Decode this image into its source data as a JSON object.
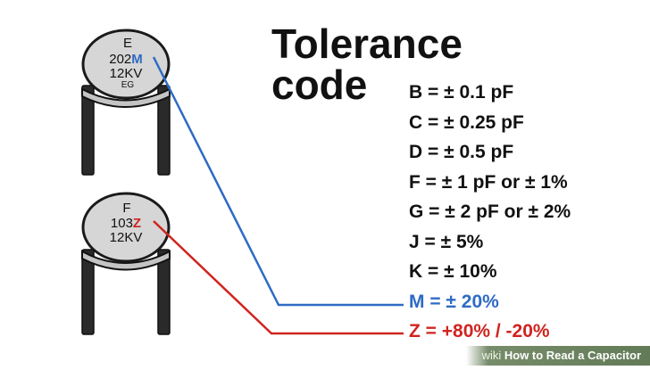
{
  "title": {
    "line1": "Tolerance",
    "line2": "code"
  },
  "capacitors": [
    {
      "line1": "E",
      "code": "202",
      "tol": "M",
      "voltage": "12KV",
      "maker": "EG",
      "tol_color": "#2e6bc4"
    },
    {
      "line1": "F",
      "code": "103",
      "tol": "Z",
      "voltage": "12KV",
      "maker": "",
      "tol_color": "#d0241f"
    }
  ],
  "codes": [
    {
      "text": "B = ± 0.1 pF",
      "color": "#111111"
    },
    {
      "text": "C = ± 0.25 pF",
      "color": "#111111"
    },
    {
      "text": "D = ± 0.5 pF",
      "color": "#111111"
    },
    {
      "text": "F = ± 1 pF or ± 1%",
      "color": "#111111"
    },
    {
      "text": "G = ± 2 pF or ± 2%",
      "color": "#111111"
    },
    {
      "text": "J = ± 5%",
      "color": "#111111"
    },
    {
      "text": "K = ± 10%",
      "color": "#111111"
    },
    {
      "text": "M = ± 20%",
      "color": "#2e6bc4"
    },
    {
      "text": "Z = +80% / -20%",
      "color": "#d0241f"
    }
  ],
  "colors": {
    "blue": "#2e6bc4",
    "red": "#d0241f",
    "disc_fill": "#d6d6d6",
    "outline": "#1a1a1a"
  },
  "watermark": {
    "brand": "wiki",
    "text": "How to Read a Capacitor"
  }
}
